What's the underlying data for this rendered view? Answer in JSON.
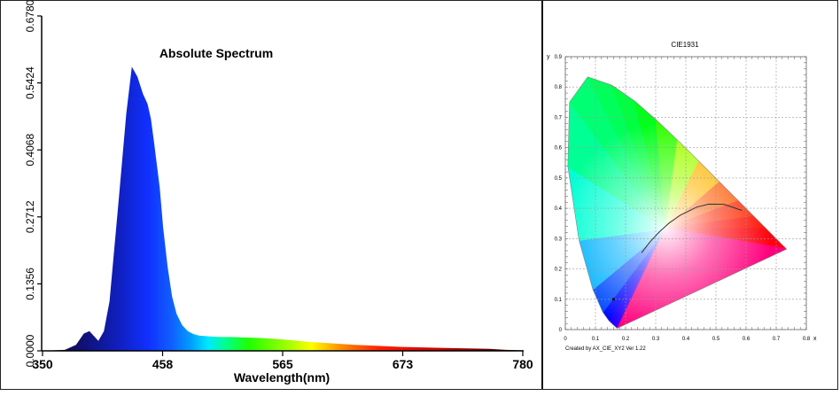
{
  "chart_data": [
    {
      "type": "area",
      "title": "Absolute Spectrum",
      "xlabel": "Wavelength(nm)",
      "ylabel": "",
      "xlim": [
        350,
        780
      ],
      "ylim": [
        0,
        0.678
      ],
      "x_ticks": [
        "350",
        "458",
        "565",
        "673",
        "780"
      ],
      "y_ticks": [
        "0.0000",
        "0.1356",
        "0.2712",
        "0.4068",
        "0.5424",
        "0.6780"
      ],
      "fill": "visible-spectrum gradient",
      "series": [
        {
          "x": [
            350,
            370,
            380,
            387,
            392,
            396,
            400,
            405,
            410,
            418,
            425,
            430,
            435,
            440,
            444,
            447,
            450,
            455,
            458,
            462,
            466,
            470,
            475,
            480,
            485,
            490,
            500,
            510,
            520,
            530,
            545,
            560,
            575,
            590,
            610,
            630,
            650,
            670,
            690,
            710,
            730,
            750,
            765,
            780
          ],
          "values": [
            0,
            0.002,
            0.012,
            0.035,
            0.04,
            0.03,
            0.02,
            0.04,
            0.1,
            0.3,
            0.48,
            0.575,
            0.555,
            0.52,
            0.5,
            0.47,
            0.42,
            0.33,
            0.25,
            0.17,
            0.11,
            0.075,
            0.052,
            0.04,
            0.034,
            0.031,
            0.029,
            0.028,
            0.028,
            0.027,
            0.026,
            0.024,
            0.021,
            0.018,
            0.015,
            0.012,
            0.01,
            0.008,
            0.007,
            0.006,
            0.005,
            0.004,
            0.002,
            0.001
          ]
        }
      ]
    },
    {
      "type": "scatter",
      "title": "CIE1931",
      "xlabel": "x",
      "ylabel": "y",
      "xlim": [
        0,
        0.8
      ],
      "ylim": [
        0,
        0.9
      ],
      "x_ticks": [
        "0",
        "0.1",
        "0.2",
        "0.3",
        "0.4",
        "0.5",
        "0.6",
        "0.7",
        "0.8"
      ],
      "y_ticks": [
        "0",
        "0.1",
        "0.2",
        "0.3",
        "0.4",
        "0.5",
        "0.6",
        "0.7",
        "0.8",
        "0.9"
      ],
      "grid": true,
      "footer": "Created by AX_CIE_XY2 Ver 1.22",
      "spectral_locus": {
        "x": [
          0.1741,
          0.174,
          0.1738,
          0.1733,
          0.1726,
          0.1714,
          0.1689,
          0.1644,
          0.1566,
          0.144,
          0.1241,
          0.0913,
          0.0454,
          0.0082,
          0.0139,
          0.0743,
          0.1547,
          0.2296,
          0.3016,
          0.3731,
          0.4441,
          0.5125,
          0.5752,
          0.627,
          0.6658,
          0.6915,
          0.7079,
          0.719,
          0.726,
          0.7347
        ],
        "y": [
          0.005,
          0.005,
          0.0049,
          0.0048,
          0.0048,
          0.0051,
          0.0069,
          0.0109,
          0.0177,
          0.0297,
          0.0578,
          0.1327,
          0.295,
          0.5384,
          0.7502,
          0.8338,
          0.8059,
          0.7543,
          0.6923,
          0.6245,
          0.5547,
          0.4866,
          0.4242,
          0.3725,
          0.334,
          0.3083,
          0.292,
          0.2809,
          0.274,
          0.2653
        ]
      },
      "planckian_locus": {
        "x": [
          0.253,
          0.28,
          0.3133,
          0.3447,
          0.3805,
          0.4369,
          0.4764,
          0.5266,
          0.5856
        ],
        "y": [
          0.253,
          0.288,
          0.3233,
          0.3516,
          0.3768,
          0.4041,
          0.4137,
          0.4133,
          0.3932
        ]
      },
      "measured_point": {
        "x": 0.16,
        "y": 0.1
      }
    }
  ]
}
